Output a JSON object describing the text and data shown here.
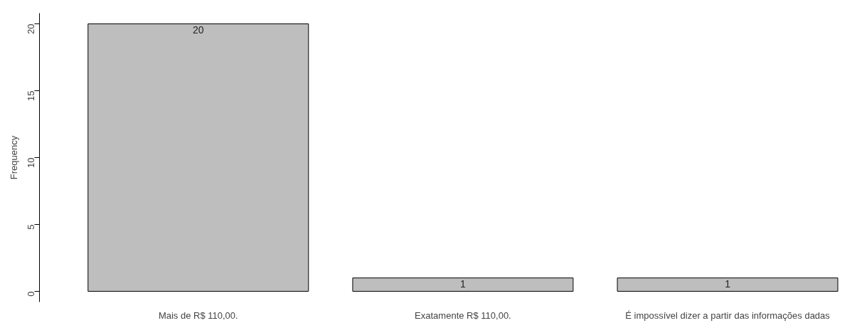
{
  "chart_data": {
    "type": "bar",
    "ylabel": "Frequency",
    "categories": [
      "Mais de R$ 110,00.",
      "Exatamente R$ 110,00.",
      "É impossível dizer a partir das informações dadas"
    ],
    "values": [
      20,
      1,
      1
    ],
    "color": "#bebebe",
    "ylim": [
      0,
      20
    ],
    "yticks": [
      0,
      5,
      10,
      15,
      20
    ],
    "grid": false,
    "data_labels": true
  }
}
